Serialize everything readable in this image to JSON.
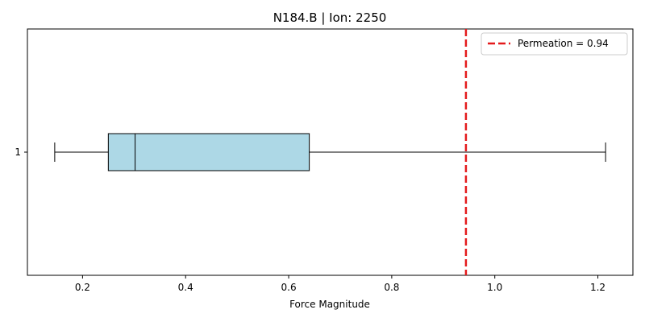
{
  "chart_data": {
    "type": "boxplot",
    "orientation": "horizontal",
    "title": "N184.B | Ion: 2250",
    "xlabel": "Force Magnitude",
    "ylabel": "",
    "xlim": [
      0.093,
      1.268
    ],
    "xticks": [
      0.2,
      0.4,
      0.6,
      0.8,
      1.0,
      1.2
    ],
    "xtick_labels": [
      "0.2",
      "0.4",
      "0.6",
      "0.8",
      "1.0",
      "1.2"
    ],
    "ytick_labels": [
      "1"
    ],
    "box": {
      "category": "1",
      "whisker_low": 0.146,
      "q1": 0.25,
      "median": 0.302,
      "q3": 0.64,
      "whisker_high": 1.215,
      "fill_color": "#add8e6"
    },
    "reference_line": {
      "value": 0.944,
      "label": "Permeation = 0.94",
      "color": "#e41a1c",
      "style": "dashed"
    },
    "legend": {
      "position": "top-right",
      "entries": [
        "Permeation = 0.94"
      ]
    },
    "grid": false
  }
}
